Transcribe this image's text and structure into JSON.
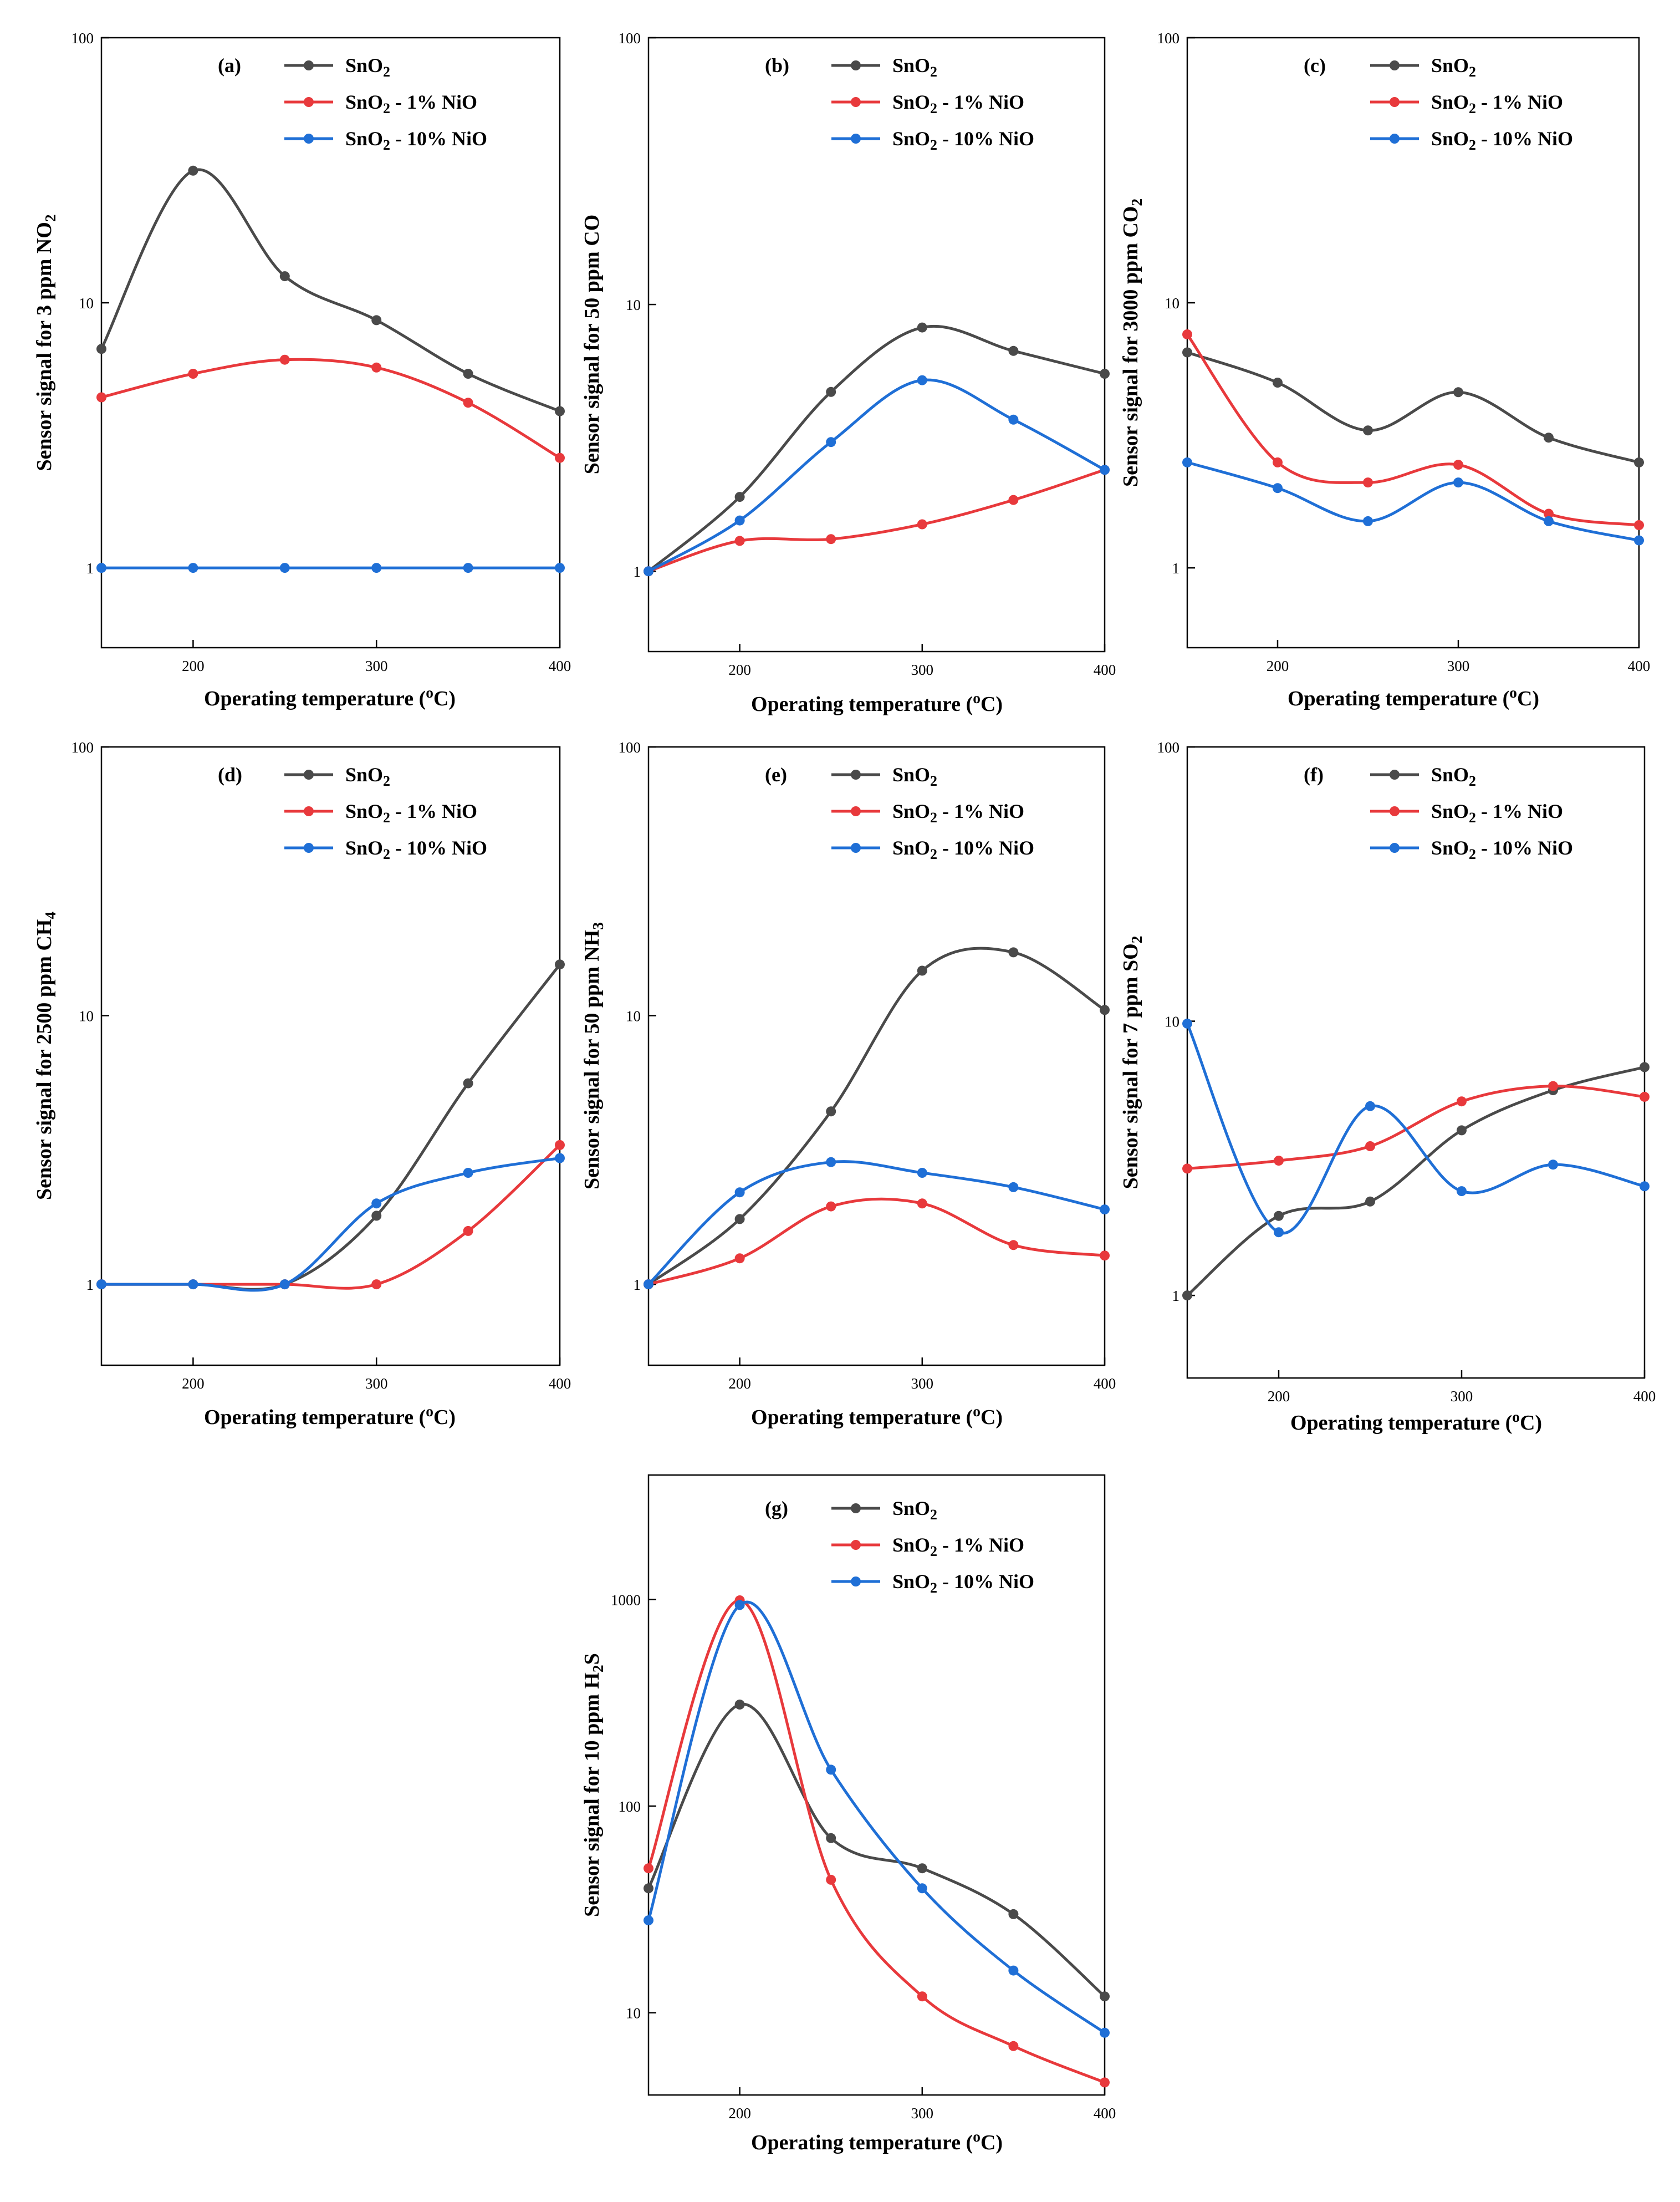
{
  "figure": {
    "colors": {
      "SnO2": "#4a4a4a",
      "SnO2 - 1% NiO": "#e8393c",
      "SnO2 - 10% NiO": "#1f6fd6"
    }
  },
  "chart_data": [
    {
      "type": "line",
      "panel": "(a)",
      "yscale": "log",
      "xlabel": "Operating temperature (oC)",
      "ylabel": "Sensor signal for 3 ppm NO2",
      "xlim": [
        150,
        400
      ],
      "ylim": [
        0.5,
        100
      ],
      "xticks": [
        200,
        300,
        400
      ],
      "yticks": [
        1,
        10,
        100
      ],
      "x": [
        150,
        200,
        250,
        300,
        350,
        400
      ],
      "series": [
        {
          "name": "SnO2",
          "values": [
            6.7,
            31.5,
            12.6,
            8.6,
            5.4,
            3.9
          ]
        },
        {
          "name": "SnO2 - 1% NiO",
          "values": [
            4.4,
            5.4,
            6.1,
            5.7,
            4.2,
            2.6
          ]
        },
        {
          "name": "SnO2 - 10% NiO",
          "values": [
            1.0,
            1.0,
            1.0,
            1.0,
            1.0,
            1.0
          ]
        }
      ]
    },
    {
      "type": "line",
      "panel": "(b)",
      "yscale": "log",
      "xlabel": "Operating temperature (oC)",
      "ylabel": "Sensor signal for 50 ppm CO",
      "xlim": [
        150,
        400
      ],
      "ylim": [
        0.5,
        100
      ],
      "xticks": [
        200,
        300,
        400
      ],
      "yticks": [
        1,
        10,
        100
      ],
      "x": [
        150,
        200,
        250,
        300,
        350,
        400
      ],
      "series": [
        {
          "name": "SnO2",
          "values": [
            1.0,
            1.9,
            4.7,
            8.2,
            6.7,
            5.5
          ]
        },
        {
          "name": "SnO2 - 1% NiO",
          "values": [
            1.0,
            1.3,
            1.32,
            1.5,
            1.85,
            2.4
          ]
        },
        {
          "name": "SnO2 - 10% NiO",
          "values": [
            1.0,
            1.55,
            3.05,
            5.2,
            3.7,
            2.4
          ]
        }
      ]
    },
    {
      "type": "line",
      "panel": "(c)",
      "yscale": "log",
      "xlabel": "Operating temperature (oC)",
      "ylabel": "Sensor signal for 3000 ppm CO2",
      "xlim": [
        150,
        400
      ],
      "ylim": [
        0.5,
        100
      ],
      "xticks": [
        200,
        300,
        400
      ],
      "yticks": [
        1,
        10,
        100
      ],
      "x": [
        150,
        200,
        250,
        300,
        350,
        400
      ],
      "series": [
        {
          "name": "SnO2",
          "values": [
            6.5,
            5.0,
            3.3,
            4.6,
            3.1,
            2.5
          ]
        },
        {
          "name": "SnO2 - 1% NiO",
          "values": [
            7.6,
            2.5,
            2.1,
            2.45,
            1.6,
            1.45
          ]
        },
        {
          "name": "SnO2 - 10% NiO",
          "values": [
            2.5,
            2.0,
            1.5,
            2.1,
            1.5,
            1.27
          ]
        }
      ]
    },
    {
      "type": "line",
      "panel": "(d)",
      "yscale": "log",
      "xlabel": "Operating temperature (oC)",
      "ylabel": "Sensor signal for 2500 ppm CH4",
      "xlim": [
        150,
        400
      ],
      "ylim": [
        0.5,
        100
      ],
      "xticks": [
        200,
        300,
        400
      ],
      "yticks": [
        1,
        10,
        100
      ],
      "x": [
        150,
        200,
        250,
        300,
        350,
        400
      ],
      "series": [
        {
          "name": "SnO2",
          "values": [
            1.0,
            1.0,
            1.0,
            1.8,
            5.6,
            15.5
          ]
        },
        {
          "name": "SnO2 - 1% NiO",
          "values": [
            1.0,
            1.0,
            1.0,
            1.0,
            1.58,
            3.3
          ]
        },
        {
          "name": "SnO2 - 10% NiO",
          "values": [
            1.0,
            1.0,
            1.0,
            2.0,
            2.6,
            2.95
          ]
        }
      ]
    },
    {
      "type": "line",
      "panel": "(e)",
      "yscale": "log",
      "xlabel": "Operating temperature (oC)",
      "ylabel": "Sensor signal for 50 ppm NH3",
      "xlim": [
        150,
        400
      ],
      "ylim": [
        0.5,
        100
      ],
      "xticks": [
        200,
        300,
        400
      ],
      "yticks": [
        1,
        10,
        100
      ],
      "x": [
        150,
        200,
        250,
        300,
        350,
        400
      ],
      "series": [
        {
          "name": "SnO2",
          "values": [
            1.0,
            1.75,
            4.4,
            14.7,
            17.2,
            10.5
          ]
        },
        {
          "name": "SnO2 - 1% NiO",
          "values": [
            1.0,
            1.25,
            1.95,
            2.0,
            1.4,
            1.28
          ]
        },
        {
          "name": "SnO2 - 10% NiO",
          "values": [
            1.0,
            2.2,
            2.85,
            2.6,
            2.3,
            1.9
          ]
        }
      ]
    },
    {
      "type": "line",
      "panel": "(f)",
      "yscale": "log",
      "xlabel": "Operating temperature (oC)",
      "ylabel": "Sensor signal for 7 ppm SO2",
      "xlim": [
        150,
        400
      ],
      "ylim": [
        0.5,
        100
      ],
      "xticks": [
        200,
        300,
        400
      ],
      "yticks": [
        1,
        10,
        100
      ],
      "x": [
        150,
        200,
        250,
        300,
        350,
        400
      ],
      "series": [
        {
          "name": "SnO2",
          "values": [
            1.0,
            1.95,
            2.2,
            4.0,
            5.6,
            6.8
          ]
        },
        {
          "name": "SnO2 - 1% NiO",
          "values": [
            2.9,
            3.1,
            3.5,
            5.1,
            5.8,
            5.3
          ]
        },
        {
          "name": "SnO2 - 10% NiO",
          "values": [
            9.8,
            1.7,
            4.9,
            2.4,
            3.0,
            2.5
          ]
        }
      ]
    },
    {
      "type": "line",
      "panel": "(g)",
      "yscale": "log",
      "xlabel": "Operating temperature (oC)",
      "ylabel": "Sensor signal for 10 ppm H2S",
      "xlim": [
        150,
        400
      ],
      "ylim": [
        4,
        4000
      ],
      "xticks": [
        200,
        300,
        400
      ],
      "yticks": [
        10,
        100,
        1000
      ],
      "x": [
        150,
        200,
        250,
        300,
        350,
        400
      ],
      "series": [
        {
          "name": "SnO2",
          "values": [
            40,
            310,
            70,
            50,
            30,
            12
          ]
        },
        {
          "name": "SnO2 - 1% NiO",
          "values": [
            50,
            990,
            44,
            12,
            6.9,
            4.6
          ]
        },
        {
          "name": "SnO2 - 10% NiO",
          "values": [
            28,
            940,
            150,
            40,
            16,
            8
          ]
        }
      ]
    }
  ]
}
